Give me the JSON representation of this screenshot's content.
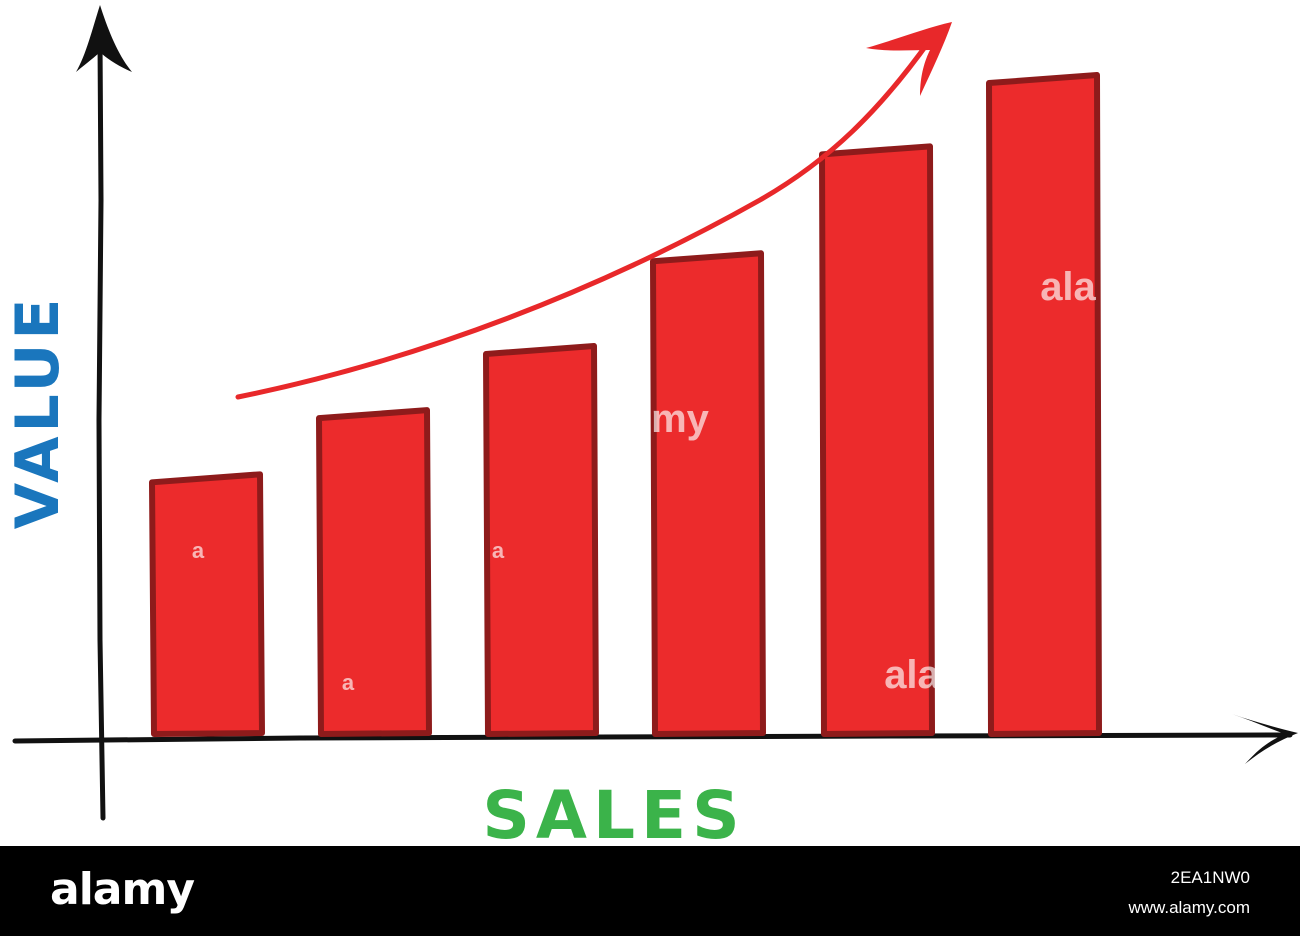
{
  "chart_data": {
    "type": "bar",
    "xlabel": "SALES",
    "ylabel": "VALUE",
    "categories": [
      "",
      "",
      "",
      "",
      "",
      ""
    ],
    "values": [
      36,
      45,
      54,
      67,
      82,
      92
    ],
    "ylim": [
      0,
      100
    ],
    "grid": false,
    "trend_arrow": "up",
    "colors": {
      "bar_fill": "#ec2b2c",
      "bar_outline": "#8e1b1b",
      "trend_arrow": "#e8282a",
      "axis": "#111111",
      "xlabel": "#3bb34a",
      "ylabel": "#1a76bd"
    }
  },
  "watermark": {
    "items": [
      "a",
      "a",
      "a",
      "my",
      "ala",
      "ala"
    ]
  },
  "footer": {
    "logo_text": "alamy",
    "image_id": "2EA1NW0",
    "url": "www.alamy.com"
  }
}
